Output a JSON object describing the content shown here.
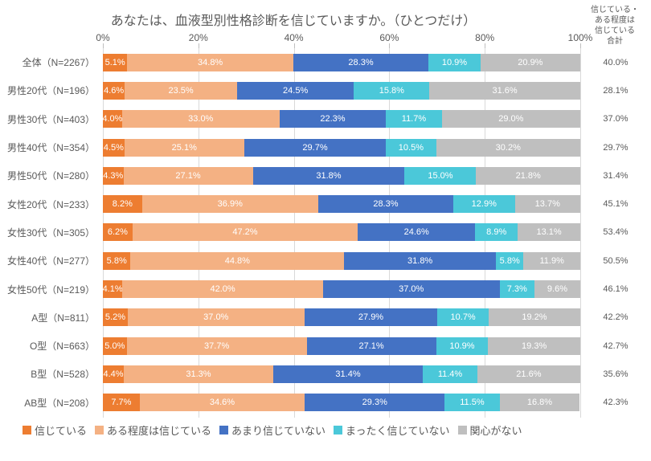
{
  "title": "あなたは、血液型別性格診断を信じていますか。（ひとつだけ）",
  "right_header": "信じている・\nある程度は\n信じている\n合計",
  "axis": {
    "ticks": [
      0,
      20,
      40,
      60,
      80,
      100
    ],
    "suffix": "%"
  },
  "colors": {
    "c0": "#ed7d31",
    "c1": "#f4b183",
    "c2": "#4472c4",
    "c3": "#4bc8d9",
    "c4": "#bfbfbf",
    "grid": "#d9d9d9",
    "text": "#595959",
    "bg": "#ffffff"
  },
  "series": [
    {
      "key": "c0",
      "label": "信じている"
    },
    {
      "key": "c1",
      "label": "ある程度は信じている"
    },
    {
      "key": "c2",
      "label": "あまり信じていない"
    },
    {
      "key": "c3",
      "label": "まったく信じていない"
    },
    {
      "key": "c4",
      "label": "関心がない"
    }
  ],
  "rows": [
    {
      "label": "全体（N=2267）",
      "vals": [
        5.1,
        34.8,
        28.3,
        10.9,
        20.9
      ],
      "total": "40.0%"
    },
    {
      "label": "男性20代（N=196）",
      "vals": [
        4.6,
        23.5,
        24.5,
        15.8,
        31.6
      ],
      "total": "28.1%"
    },
    {
      "label": "男性30代（N=403）",
      "vals": [
        4.0,
        33.0,
        22.3,
        11.7,
        29.0
      ],
      "total": "37.0%"
    },
    {
      "label": "男性40代（N=354）",
      "vals": [
        4.5,
        25.1,
        29.7,
        10.5,
        30.2
      ],
      "total": "29.7%"
    },
    {
      "label": "男性50代（N=280）",
      "vals": [
        4.3,
        27.1,
        31.8,
        15.0,
        21.8
      ],
      "total": "31.4%"
    },
    {
      "label": "女性20代（N=233）",
      "vals": [
        8.2,
        36.9,
        28.3,
        12.9,
        13.7
      ],
      "total": "45.1%"
    },
    {
      "label": "女性30代（N=305）",
      "vals": [
        6.2,
        47.2,
        24.6,
        8.9,
        13.1
      ],
      "total": "53.4%"
    },
    {
      "label": "女性40代（N=277）",
      "vals": [
        5.8,
        44.8,
        31.8,
        5.8,
        11.9
      ],
      "total": "50.5%"
    },
    {
      "label": "女性50代（N=219）",
      "vals": [
        4.1,
        42.0,
        37.0,
        7.3,
        9.6
      ],
      "total": "46.1%"
    },
    {
      "label": "A型（N=811）",
      "vals": [
        5.2,
        37.0,
        27.9,
        10.7,
        19.2
      ],
      "total": "42.2%"
    },
    {
      "label": "O型（N=663）",
      "vals": [
        5.0,
        37.7,
        27.1,
        10.9,
        19.3
      ],
      "total": "42.7%"
    },
    {
      "label": "B型（N=528）",
      "vals": [
        4.4,
        31.3,
        31.4,
        11.4,
        21.6
      ],
      "total": "35.6%"
    },
    {
      "label": "AB型（N=208）",
      "vals": [
        7.7,
        34.6,
        29.3,
        11.5,
        16.8
      ],
      "total": "42.3%"
    }
  ]
}
